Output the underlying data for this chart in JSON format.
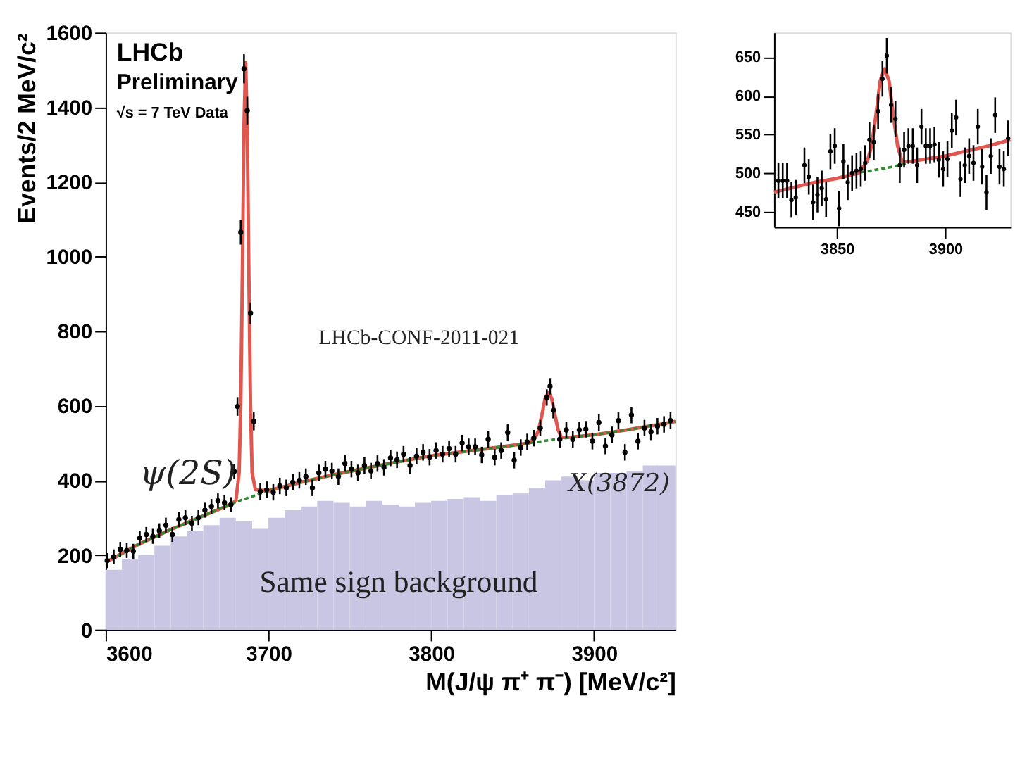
{
  "chart_data": [
    {
      "type": "scatter",
      "xlabel": "M(J/ψ π⁺ π⁻) [MeV/c²]",
      "ylabel": "Events/2 MeV/c²",
      "xlim": [
        3600,
        3950
      ],
      "ylim": [
        0,
        1600
      ],
      "xticks": [
        3600,
        3700,
        3800,
        3900
      ],
      "yticks": [
        0,
        200,
        400,
        600,
        800,
        1000,
        1200,
        1400,
        1600
      ],
      "grid": false,
      "annotations": [
        "LHCb",
        "Preliminary",
        "√s = 7 TeV Data",
        "LHCb-CONF-2011-021",
        "ψ(2S)",
        "X(3872)"
      ],
      "series": [
        {
          "type": "histogram",
          "name": "Same sign background",
          "color": "#c9c6e3",
          "bins": [
            3600,
            3610,
            3620,
            3630,
            3640,
            3650,
            3660,
            3670,
            3680,
            3690,
            3700,
            3710,
            3720,
            3730,
            3740,
            3750,
            3760,
            3770,
            3780,
            3790,
            3800,
            3810,
            3820,
            3830,
            3840,
            3850,
            3860,
            3870,
            3880,
            3890,
            3900,
            3910,
            3920,
            3930,
            3940,
            3950
          ],
          "values": [
            160,
            190,
            200,
            225,
            250,
            265,
            280,
            300,
            290,
            270,
            300,
            320,
            330,
            345,
            340,
            330,
            345,
            335,
            330,
            340,
            345,
            350,
            355,
            345,
            360,
            365,
            380,
            400,
            410,
            400,
            420,
            420,
            425,
            440,
            440
          ]
        },
        {
          "type": "line",
          "line_style": "solid",
          "marker": "none",
          "color": "#e0574f",
          "x": [
            3600,
            3620,
            3640,
            3660,
            3676,
            3680,
            3682,
            3683,
            3684,
            3685,
            3686,
            3687,
            3688,
            3689,
            3690,
            3692,
            3700,
            3720,
            3740,
            3760,
            3780,
            3800,
            3820,
            3840,
            3860,
            3864,
            3866,
            3868,
            3870,
            3872,
            3874,
            3876,
            3878,
            3880,
            3884,
            3900,
            3920,
            3940,
            3950
          ],
          "values": [
            180,
            228,
            268,
            305,
            334,
            345,
            420,
            600,
            950,
            1350,
            1520,
            1350,
            950,
            600,
            420,
            375,
            372,
            395,
            415,
            433,
            450,
            466,
            477,
            488,
            500,
            515,
            535,
            575,
            620,
            635,
            620,
            575,
            535,
            515,
            515,
            522,
            535,
            550,
            558
          ]
        },
        {
          "type": "line",
          "line_style": "dotted",
          "marker": "none",
          "color": "#2e8b2e",
          "x": [
            3600,
            3620,
            3640,
            3660,
            3680,
            3700,
            3720,
            3740,
            3760,
            3780,
            3800,
            3820,
            3840,
            3850,
            3860,
            3880,
            3900,
            3920,
            3930,
            3940,
            3950
          ],
          "values": [
            180,
            228,
            268,
            305,
            342,
            372,
            395,
            415,
            433,
            450,
            466,
            477,
            488,
            493,
            500,
            512,
            522,
            535,
            543,
            550,
            558
          ]
        },
        {
          "marker": "circle",
          "color": "#000000",
          "x": [
            3601,
            3605,
            3609,
            3613,
            3617,
            3621,
            3625,
            3629,
            3633,
            3637,
            3641,
            3645,
            3649,
            3653,
            3657,
            3661,
            3665,
            3669,
            3673,
            3677,
            3679,
            3681,
            3683,
            3685,
            3687,
            3689,
            3691,
            3695,
            3699,
            3703,
            3707,
            3711,
            3715,
            3719,
            3723,
            3727,
            3731,
            3735,
            3739,
            3743,
            3747,
            3751,
            3755,
            3759,
            3763,
            3767,
            3771,
            3775,
            3779,
            3783,
            3787,
            3791,
            3795,
            3799,
            3803,
            3807,
            3811,
            3815,
            3819,
            3823,
            3827,
            3831,
            3835,
            3839,
            3843,
            3847,
            3851,
            3855,
            3859,
            3863,
            3867,
            3871,
            3873,
            3875,
            3879,
            3883,
            3887,
            3891,
            3895,
            3899,
            3903,
            3907,
            3911,
            3915,
            3919,
            3923,
            3927,
            3931,
            3935,
            3939,
            3943,
            3947
          ],
          "values": [
            185,
            195,
            215,
            212,
            210,
            245,
            255,
            250,
            265,
            280,
            255,
            295,
            300,
            285,
            300,
            320,
            330,
            345,
            340,
            335,
            424,
            598,
            1065,
            1503,
            1391,
            848,
            558,
            370,
            375,
            368,
            385,
            380,
            395,
            400,
            410,
            380,
            420,
            430,
            425,
            410,
            445,
            430,
            420,
            440,
            425,
            445,
            435,
            460,
            455,
            470,
            440,
            465,
            475,
            462,
            480,
            470,
            485,
            470,
            500,
            490,
            490,
            468,
            510,
            462,
            480,
            528,
            454,
            488,
            503,
            513,
            540,
            622,
            652,
            588,
            510,
            535,
            510,
            535,
            537,
            505,
            555,
            492,
            522,
            560,
            475,
            575,
            505,
            540,
            530,
            545,
            550,
            560
          ],
          "errors": [
            20,
            20,
            20,
            20,
            20,
            20,
            20,
            20,
            20,
            20,
            20,
            20,
            20,
            20,
            20,
            20,
            20,
            20,
            20,
            20,
            20,
            25,
            33,
            39,
            37,
            29,
            24,
            22,
            22,
            22,
            22,
            22,
            22,
            22,
            22,
            22,
            22,
            22,
            22,
            22,
            22,
            22,
            22,
            22,
            22,
            22,
            22,
            22,
            22,
            22,
            22,
            22,
            22,
            22,
            22,
            22,
            22,
            22,
            22,
            22,
            22,
            22,
            22,
            22,
            22,
            22,
            22,
            22,
            22,
            22,
            22,
            22,
            22,
            22,
            22,
            22,
            22,
            22,
            22,
            22,
            22,
            22,
            22,
            22,
            22,
            22,
            22,
            22,
            22,
            22,
            22,
            22
          ]
        }
      ]
    },
    {
      "type": "scatter",
      "xlim": [
        3821,
        3930
      ],
      "ylim": [
        430,
        682
      ],
      "xticks": [
        3850,
        3900
      ],
      "yticks": [
        450,
        500,
        550,
        600,
        650
      ],
      "grid": false,
      "series": [
        {
          "type": "line",
          "line_style": "dotted",
          "marker": "none",
          "color": "#2e8b2e",
          "x": [
            3861,
            3872,
            3882
          ],
          "values": [
            501,
            506,
            512
          ]
        },
        {
          "type": "line",
          "line_style": "solid",
          "marker": "none",
          "color": "#e0574f",
          "x": [
            3821,
            3840,
            3850,
            3860,
            3864,
            3866,
            3868,
            3870,
            3872,
            3874,
            3876,
            3878,
            3880,
            3884,
            3900,
            3920,
            3930
          ],
          "values": [
            475,
            488,
            493,
            500,
            515,
            535,
            575,
            620,
            635,
            620,
            575,
            535,
            515,
            515,
            522,
            535,
            543
          ]
        },
        {
          "marker": "circle",
          "color": "#000000",
          "x": [
            3823,
            3825,
            3827,
            3829,
            3831,
            3835,
            3837,
            3839,
            3841,
            3843,
            3845,
            3847,
            3849,
            3851,
            3853,
            3855,
            3857,
            3859,
            3861,
            3863,
            3865,
            3867,
            3869,
            3871,
            3873,
            3875,
            3877,
            3879,
            3881,
            3883,
            3885,
            3887,
            3889,
            3891,
            3893,
            3895,
            3897,
            3899,
            3901,
            3903,
            3905,
            3907,
            3909,
            3911,
            3913,
            3915,
            3917,
            3919,
            3921,
            3923,
            3925,
            3927,
            3929
          ],
          "values": [
            490,
            490,
            490,
            465,
            468,
            510,
            495,
            462,
            472,
            480,
            466,
            528,
            535,
            454,
            515,
            488,
            500,
            503,
            505,
            513,
            543,
            540,
            580,
            622,
            652,
            588,
            570,
            510,
            530,
            535,
            535,
            510,
            560,
            535,
            535,
            537,
            517,
            505,
            518,
            555,
            572,
            492,
            510,
            522,
            513,
            560,
            508,
            475,
            522,
            575,
            508,
            505,
            545
          ],
          "errors": [
            23,
            23,
            23,
            23,
            23,
            23,
            23,
            23,
            23,
            23,
            23,
            23,
            23,
            23,
            23,
            23,
            23,
            23,
            23,
            23,
            23,
            23,
            23,
            23,
            23,
            23,
            23,
            23,
            23,
            23,
            23,
            23,
            23,
            23,
            23,
            23,
            23,
            23,
            23,
            23,
            23,
            23,
            23,
            23,
            23,
            23,
            23,
            23,
            23,
            23,
            23,
            23,
            23
          ]
        }
      ]
    }
  ]
}
